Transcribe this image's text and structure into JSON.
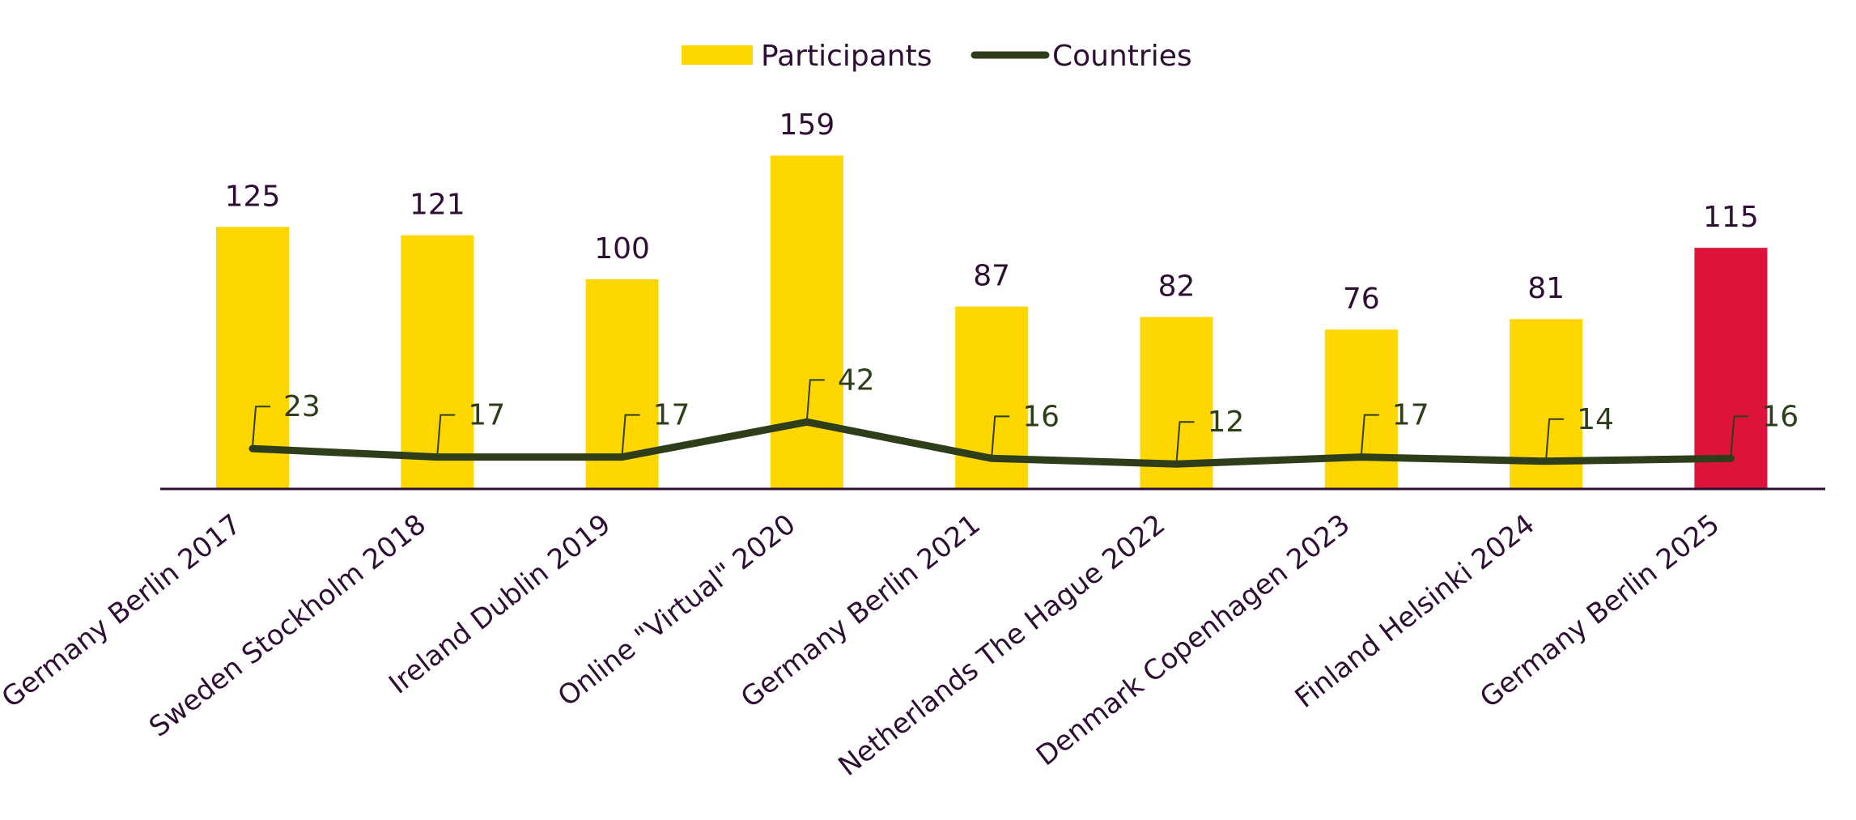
{
  "chart_data": {
    "type": "bar",
    "categories": [
      "Germany Berlin 2017",
      "Sweden Stockholm 2018",
      "Ireland Dublin 2019",
      "Online \"Virtual\" 2020",
      "Germany Berlin 2021",
      "Netherlands The Hague 2022",
      "Denmark Copenhagen 2023",
      "Finland Helsinki 2024",
      "Germany Berlin 2025"
    ],
    "series": [
      {
        "name": "Participants",
        "kind": "bar",
        "color": "#FFD700",
        "highlight_color": "#DC143C",
        "highlight_index": 8,
        "values": [
          125,
          121,
          100,
          159,
          87,
          82,
          76,
          81,
          115
        ]
      },
      {
        "name": "Countries",
        "kind": "line",
        "color": "#2F3E1A",
        "values": [
          23,
          17,
          17,
          42,
          16,
          12,
          17,
          14,
          16
        ]
      }
    ],
    "title": "",
    "xlabel": "",
    "ylabel": "",
    "legend": "top-center",
    "grid": false,
    "axes_visible": false
  }
}
